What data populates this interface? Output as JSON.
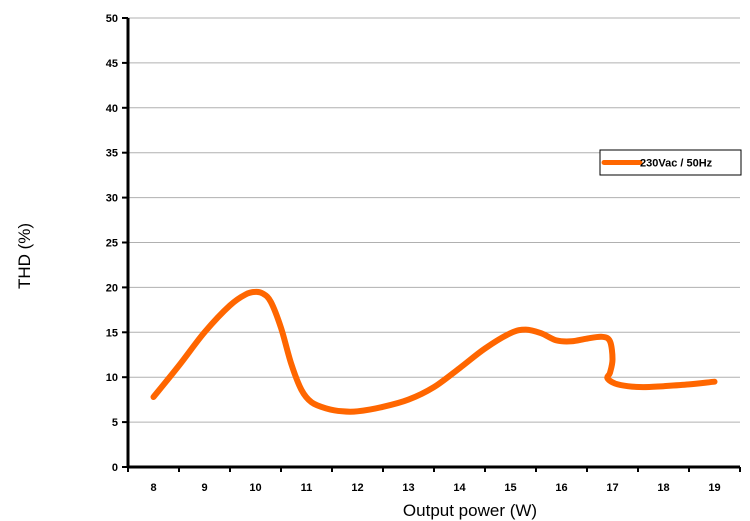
{
  "chart_data": {
    "type": "line",
    "title": "",
    "xlabel": "Output power (W)",
    "ylabel": "THD (%)",
    "xlim": [
      7.5,
      19.5
    ],
    "ylim": [
      0,
      50
    ],
    "xticks": [
      8,
      9,
      10,
      11,
      12,
      13,
      14,
      15,
      16,
      17,
      18,
      19
    ],
    "yticks": [
      0,
      5,
      10,
      15,
      20,
      25,
      30,
      35,
      40,
      45,
      50
    ],
    "grid": "horizontal",
    "legend": "right",
    "series": [
      {
        "name": "230Vac / 50Hz",
        "color": "#ff6600",
        "x": [
          8.0,
          8.5,
          9.0,
          9.5,
          9.8,
          10.0,
          10.15,
          10.3,
          10.5,
          10.7,
          10.9,
          11.1,
          11.4,
          11.7,
          12.0,
          12.5,
          13.0,
          13.5,
          14.0,
          14.5,
          15.0,
          15.3,
          15.6,
          15.9,
          16.2,
          16.5,
          16.8,
          16.95,
          17.0,
          16.95,
          16.9,
          17.05,
          17.3,
          17.6,
          18.0,
          18.5,
          19.0
        ],
        "y": [
          7.8,
          11.3,
          15.0,
          18.0,
          19.2,
          19.5,
          19.3,
          18.4,
          15.5,
          11.5,
          8.6,
          7.2,
          6.5,
          6.2,
          6.2,
          6.7,
          7.5,
          8.9,
          11.0,
          13.2,
          14.9,
          15.3,
          14.9,
          14.1,
          14.0,
          14.3,
          14.5,
          14.0,
          12.0,
          10.5,
          9.9,
          9.3,
          9.0,
          8.9,
          9.0,
          9.2,
          9.5
        ]
      }
    ]
  }
}
